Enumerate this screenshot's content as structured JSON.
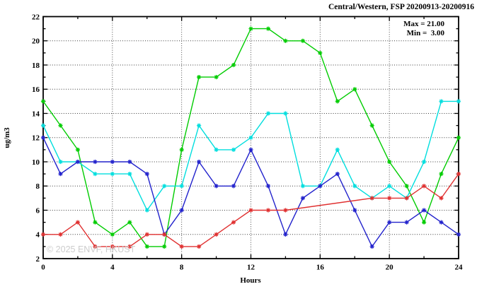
{
  "header": {
    "title": "Central/Western, FSP 20200913-20200916"
  },
  "legend": {
    "max_label": "Max = 21.00",
    "min_label": "Min =  3.00"
  },
  "watermark": "© 2025 ENVF, HKUST",
  "chart_data": {
    "type": "line",
    "title": "Central/Western, FSP 20200913-20200916",
    "xlabel": "Hours",
    "ylabel": "ug/m3",
    "xlim": [
      0,
      24
    ],
    "ylim": [
      2,
      22
    ],
    "grid": true,
    "legend_position": "top-right",
    "stats": {
      "max": 21.0,
      "min": 3.0
    },
    "x_major_ticks": [
      0,
      4,
      8,
      12,
      16,
      20,
      24
    ],
    "x_minor_ticks": [
      2,
      6,
      10,
      14,
      18,
      22
    ],
    "y_major_ticks": [
      2,
      4,
      6,
      8,
      10,
      12,
      14,
      16,
      18,
      20,
      22
    ],
    "y_minor_ticks": [
      3,
      5,
      7,
      9,
      11,
      13,
      15,
      17,
      19,
      21
    ],
    "x_gridlines": [
      4,
      8,
      12,
      16,
      20
    ],
    "y_gridlines": [
      4,
      6,
      8,
      10,
      12,
      14,
      16,
      18,
      20
    ],
    "x": [
      0,
      1,
      2,
      3,
      4,
      5,
      6,
      7,
      8,
      9,
      10,
      11,
      12,
      13,
      14,
      15,
      16,
      17,
      18,
      19,
      20,
      21,
      22,
      23,
      24
    ],
    "series": [
      {
        "name": "station-green",
        "color": "#00cc00",
        "values": [
          15,
          13,
          11,
          5,
          4,
          5,
          3,
          3,
          11,
          17,
          17,
          18,
          21,
          21,
          20,
          20,
          19,
          15,
          16,
          13,
          10,
          8,
          5,
          9,
          12
        ]
      },
      {
        "name": "station-cyan",
        "color": "#00dede",
        "values": [
          13,
          10,
          10,
          9,
          9,
          9,
          6,
          8,
          8,
          13,
          11,
          11,
          12,
          14,
          14,
          8,
          8,
          11,
          8,
          7,
          8,
          7,
          10,
          15,
          15
        ]
      },
      {
        "name": "station-blue",
        "color": "#2222cc",
        "values": [
          12,
          9,
          10,
          10,
          10,
          10,
          9,
          4,
          6,
          10,
          8,
          8,
          11,
          8,
          4,
          7,
          8,
          9,
          6,
          3,
          5,
          5,
          6,
          5,
          4
        ]
      },
      {
        "name": "station-red",
        "color": "#e03030",
        "values": [
          4,
          4,
          5,
          3,
          3,
          3,
          4,
          4,
          3,
          3,
          4,
          5,
          6,
          6,
          6,
          null,
          null,
          null,
          null,
          7,
          7,
          7,
          8,
          7,
          9
        ]
      }
    ]
  }
}
